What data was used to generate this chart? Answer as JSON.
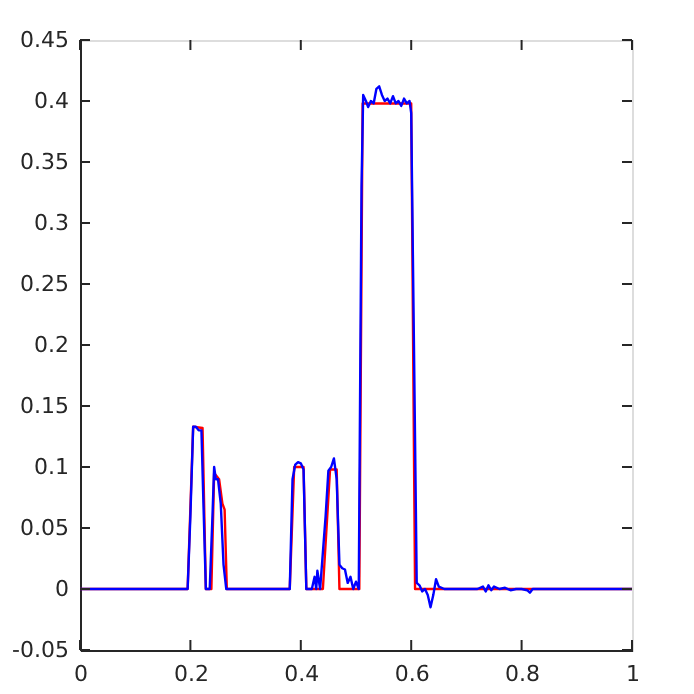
{
  "chart_data": {
    "type": "line",
    "xlim": [
      0,
      1
    ],
    "ylim": [
      -0.05,
      0.45
    ],
    "xticks": [
      0,
      0.2,
      0.4,
      0.6,
      0.8,
      1
    ],
    "yticks": [
      -0.05,
      0,
      0.05,
      0.1,
      0.15,
      0.2,
      0.25,
      0.3,
      0.35,
      0.4,
      0.45
    ],
    "grid": false,
    "marker": "none",
    "line_style": "solid",
    "series": [
      {
        "color": "#ff0000",
        "x": [
          0,
          0.195,
          0.205,
          0.222,
          0.228,
          0.238,
          0.243,
          0.252,
          0.258,
          0.262,
          0.266,
          0.38,
          0.388,
          0.405,
          0.41,
          0.44,
          0.453,
          0.465,
          0.47,
          0.506,
          0.512,
          0.6,
          0.607,
          1
        ],
        "values": [
          0,
          0,
          0.133,
          0.132,
          0,
          0,
          0.095,
          0.09,
          0.07,
          0.065,
          0,
          0,
          0.1,
          0.1,
          0,
          0,
          0.098,
          0.098,
          0,
          0,
          0.398,
          0.398,
          0,
          0
        ]
      },
      {
        "color": "#0000ff",
        "x": [
          0,
          0.195,
          0.2,
          0.205,
          0.21,
          0.215,
          0.22,
          0.223,
          0.228,
          0.235,
          0.24,
          0.243,
          0.246,
          0.25,
          0.255,
          0.26,
          0.265,
          0.38,
          0.385,
          0.39,
          0.395,
          0.4,
          0.405,
          0.41,
          0.42,
          0.425,
          0.428,
          0.43,
          0.435,
          0.44,
          0.445,
          0.45,
          0.455,
          0.46,
          0.465,
          0.47,
          0.475,
          0.48,
          0.485,
          0.49,
          0.495,
          0.5,
          0.505,
          0.51,
          0.513,
          0.518,
          0.522,
          0.527,
          0.532,
          0.537,
          0.542,
          0.547,
          0.552,
          0.557,
          0.562,
          0.567,
          0.572,
          0.577,
          0.582,
          0.587,
          0.592,
          0.597,
          0.6,
          0.605,
          0.61,
          0.615,
          0.62,
          0.625,
          0.63,
          0.635,
          0.64,
          0.645,
          0.65,
          0.66,
          0.72,
          0.73,
          0.735,
          0.74,
          0.745,
          0.75,
          0.76,
          0.77,
          0.78,
          0.79,
          0.8,
          0.81,
          0.815,
          0.82,
          1
        ],
        "values": [
          0,
          0,
          0.06,
          0.133,
          0.133,
          0.13,
          0.13,
          0.08,
          0,
          0,
          0.06,
          0.1,
          0.09,
          0.09,
          0.07,
          0.02,
          0,
          0,
          0.09,
          0.102,
          0.104,
          0.103,
          0.098,
          0,
          0,
          0.01,
          0,
          0.015,
          0,
          0.03,
          0.06,
          0.097,
          0.1,
          0.107,
          0.09,
          0.02,
          0.017,
          0.016,
          0.005,
          0.01,
          0,
          0.006,
          0,
          0.33,
          0.405,
          0.4,
          0.395,
          0.4,
          0.398,
          0.41,
          0.412,
          0.405,
          0.4,
          0.402,
          0.398,
          0.404,
          0.398,
          0.4,
          0.396,
          0.402,
          0.398,
          0.4,
          0.39,
          0.2,
          0.005,
          0.003,
          -0.002,
          0,
          -0.005,
          -0.015,
          -0.005,
          0.008,
          0.002,
          0,
          0,
          0.002,
          -0.002,
          0.003,
          -0.001,
          0.002,
          0,
          0.001,
          -0.001,
          0,
          0,
          -0.001,
          -0.003,
          0,
          0
        ]
      }
    ]
  }
}
